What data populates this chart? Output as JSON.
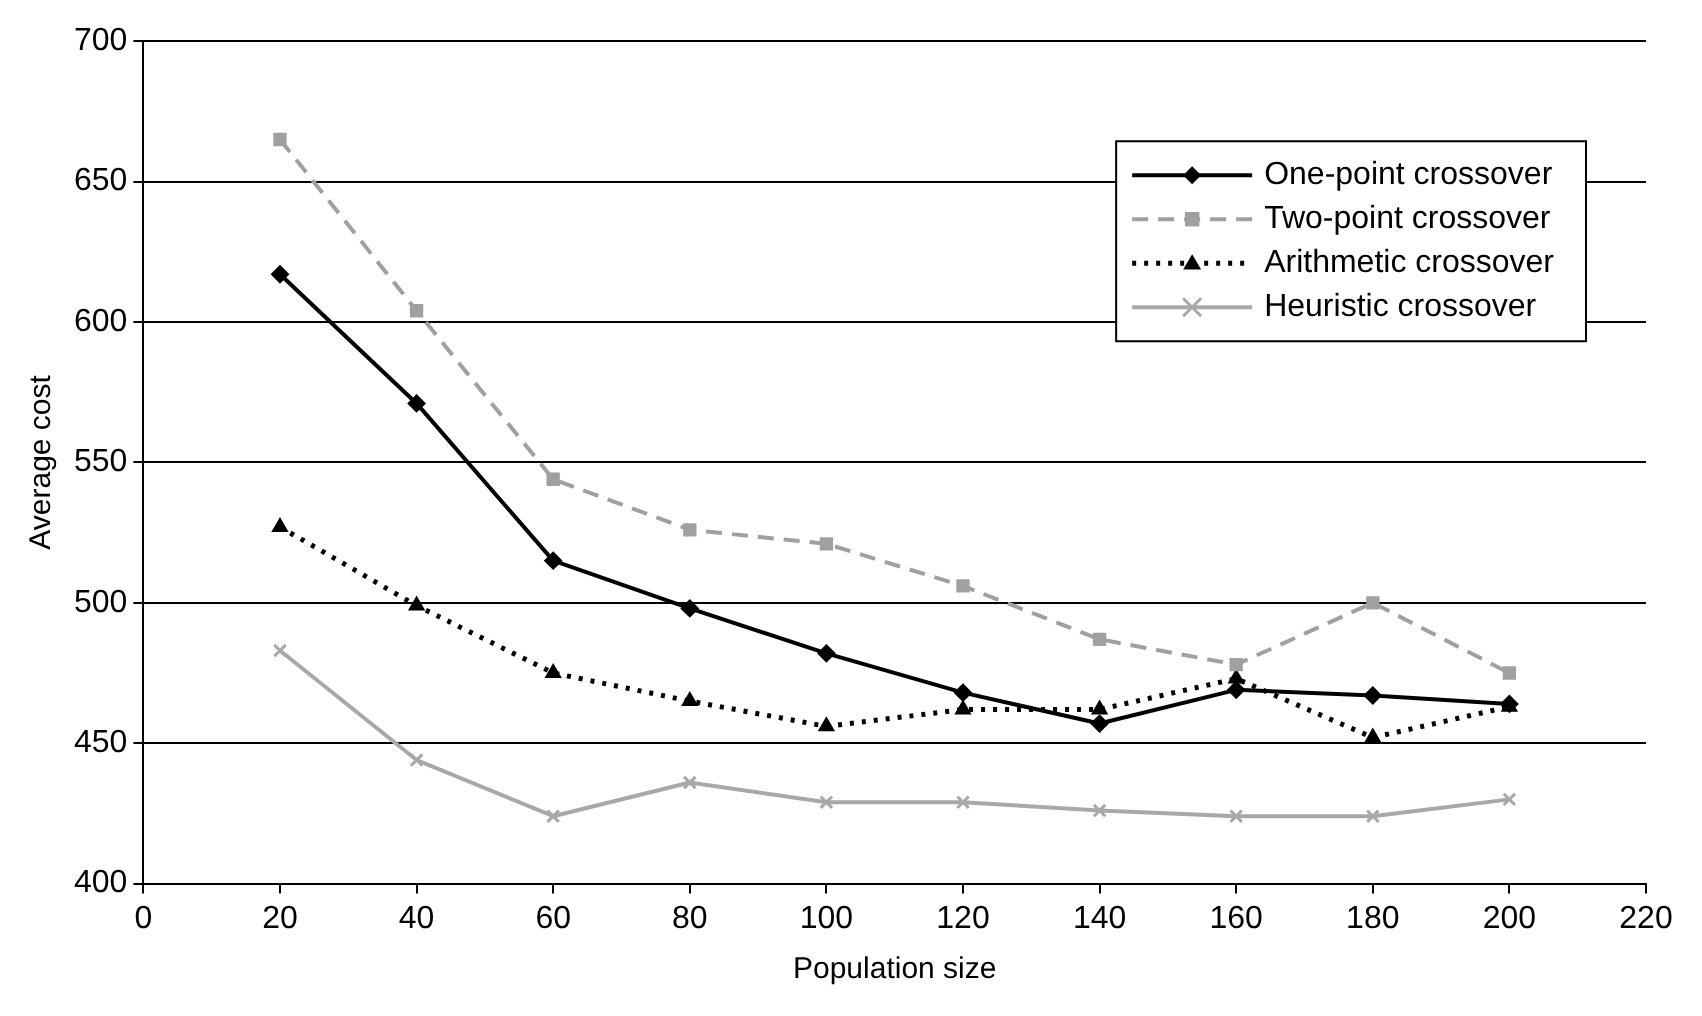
{
  "chart_data": {
    "type": "line",
    "xlabel": "Population size",
    "ylabel": "Average cost",
    "x": [
      20,
      40,
      60,
      80,
      100,
      120,
      140,
      160,
      180,
      200
    ],
    "xlim": [
      0,
      220
    ],
    "xticks": [
      0,
      20,
      40,
      60,
      80,
      100,
      120,
      140,
      160,
      180,
      200,
      220
    ],
    "ylim": [
      400,
      700
    ],
    "yticks": [
      400,
      450,
      500,
      550,
      600,
      650,
      700
    ],
    "grid": "y",
    "legend": "top right",
    "series": [
      {
        "name": "One-point crossover",
        "color": "#000000",
        "marker": "diamond",
        "line_style": "solid",
        "values": [
          617,
          571,
          515,
          498,
          482,
          468,
          457,
          469,
          467,
          464
        ]
      },
      {
        "name": "Two-point crossover",
        "color": "#a0a0a0",
        "marker": "square",
        "line_style": "dashed",
        "values": [
          665,
          604,
          544,
          526,
          521,
          506,
          487,
          478,
          500,
          475
        ]
      },
      {
        "name": "Arithmetic crossover",
        "color": "#000000",
        "marker": "triangle",
        "line_style": "dotted",
        "values": [
          527,
          499,
          475,
          465,
          456,
          462,
          462,
          473,
          452,
          463
        ]
      },
      {
        "name": "Heuristic crossover",
        "color": "#a8a8a8",
        "marker": "cross",
        "line_style": "solid",
        "values": [
          483,
          444,
          424,
          436,
          429,
          429,
          426,
          424,
          424,
          430
        ]
      }
    ]
  }
}
